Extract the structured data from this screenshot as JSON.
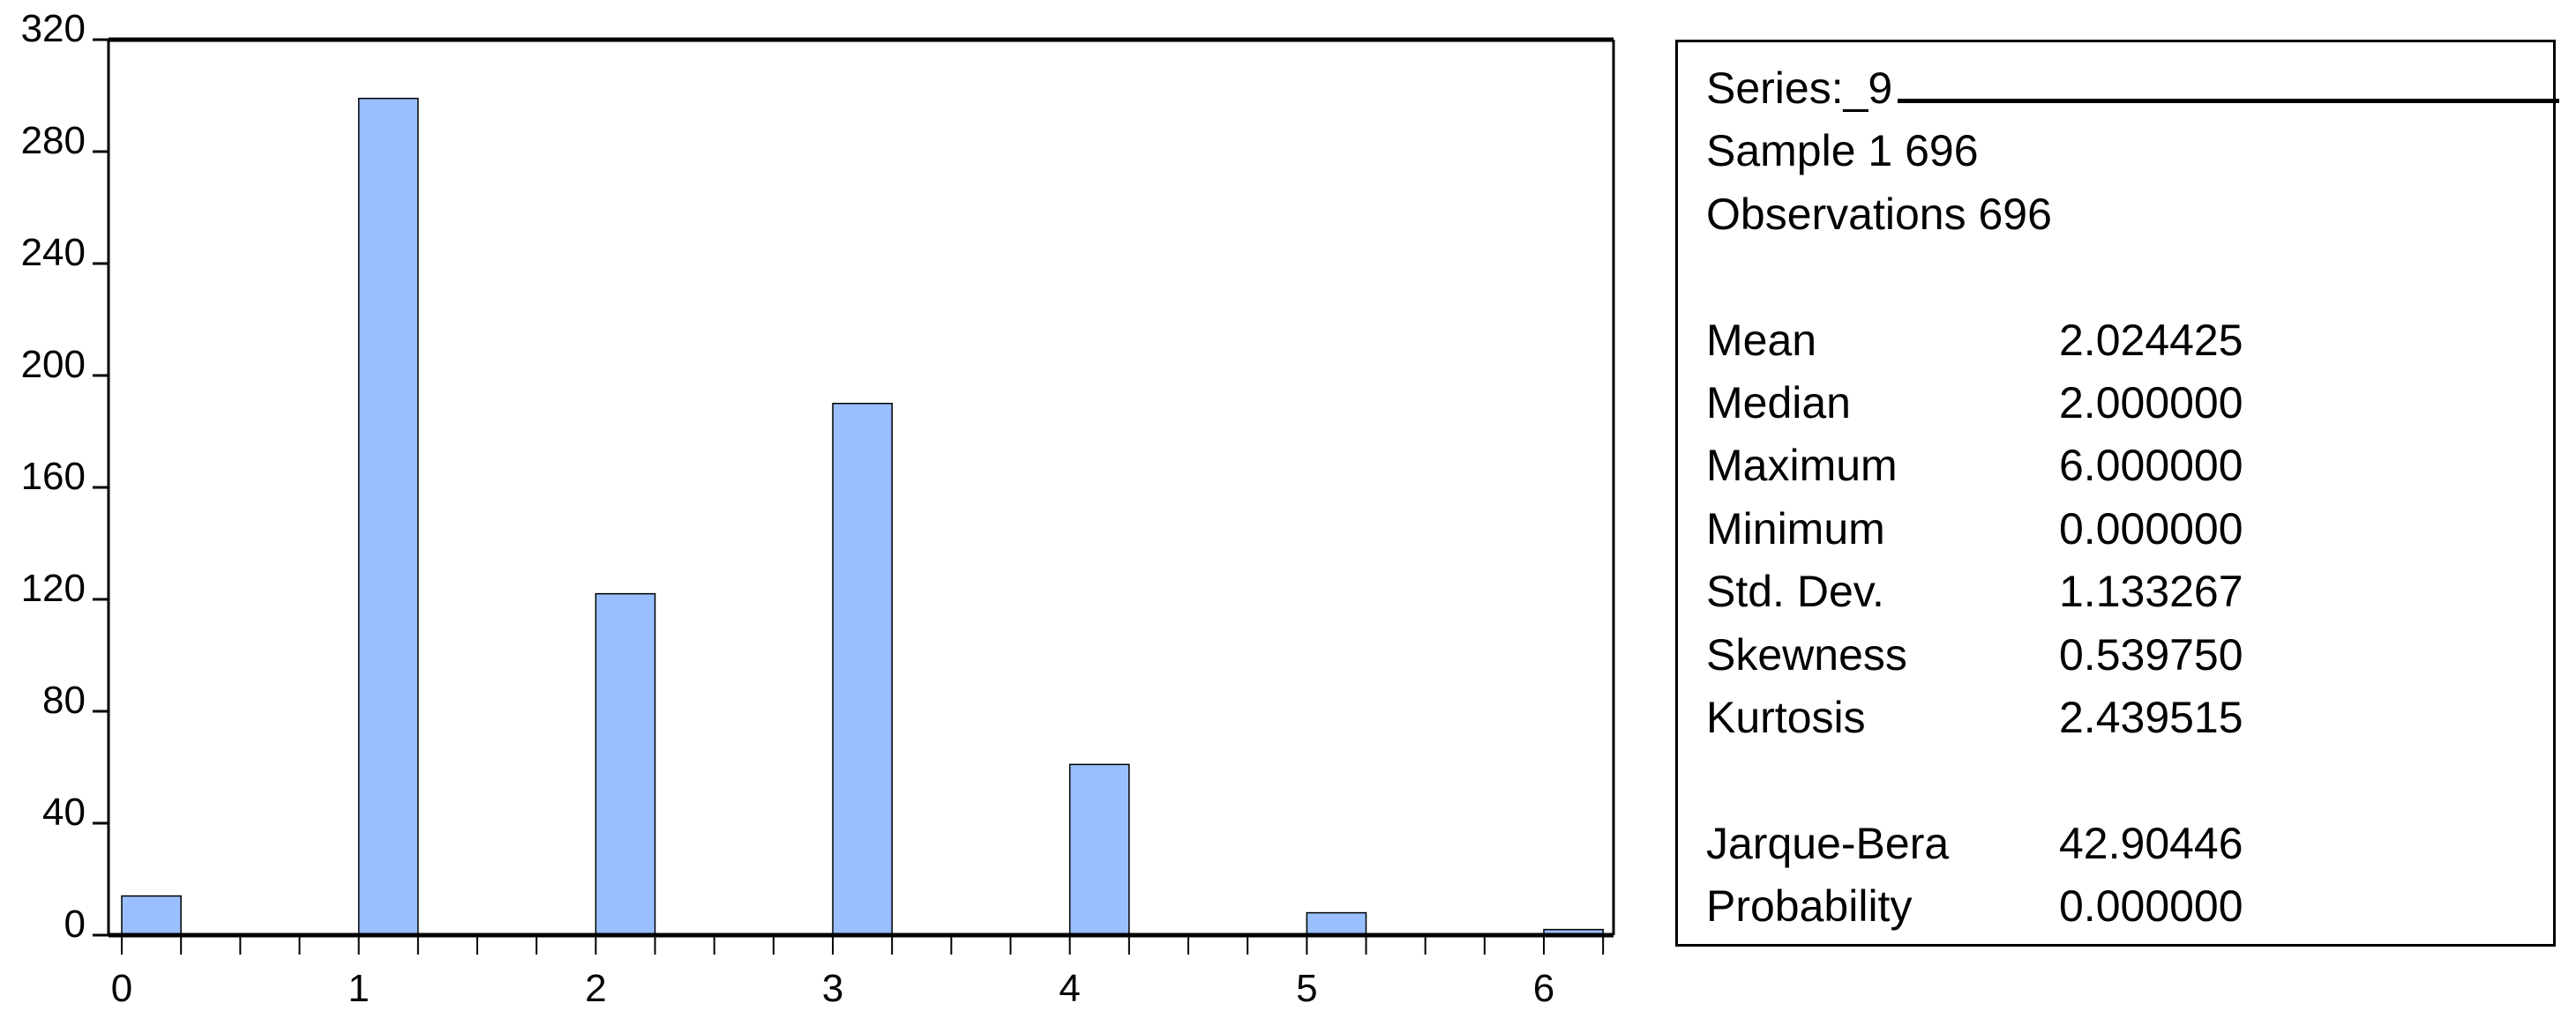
{
  "chart_data": {
    "type": "bar",
    "categories": [
      "0",
      "1",
      "2",
      "3",
      "4",
      "5",
      "6"
    ],
    "x": [
      0,
      1,
      2,
      3,
      4,
      5,
      6
    ],
    "values": [
      14,
      299,
      122,
      190,
      61,
      8,
      2
    ],
    "bar_width": 0.25,
    "xlim": [
      0,
      6.3
    ],
    "ylim": [
      0,
      320
    ],
    "yticks": [
      "0",
      "40",
      "80",
      "120",
      "160",
      "200",
      "240",
      "280",
      "320"
    ],
    "xticks": [
      "0",
      "1",
      "2",
      "3",
      "4",
      "5",
      "6"
    ],
    "x_minor_step": 0.25,
    "bar_color": "#99BFFF",
    "bar_edge_color": "#000000",
    "grid": false,
    "title": "",
    "xlabel": "",
    "ylabel": ""
  },
  "stats": {
    "series": "Series:_9",
    "sample": "Sample 1 696",
    "observations": "Observations 696",
    "rows": [
      {
        "label": "Mean",
        "value": "2.024425"
      },
      {
        "label": "Median",
        "value": "2.000000"
      },
      {
        "label": "Maximum",
        "value": "6.000000"
      },
      {
        "label": "Minimum",
        "value": "0.000000"
      },
      {
        "label": "Std. Dev.",
        "value": "1.133267"
      },
      {
        "label": "Skewness",
        "value": "0.539750"
      },
      {
        "label": "Kurtosis",
        "value": "2.439515"
      }
    ],
    "tests": [
      {
        "label": "Jarque-Bera",
        "value": "42.90446"
      },
      {
        "label": "Probability",
        "value": "0.000000"
      }
    ]
  }
}
